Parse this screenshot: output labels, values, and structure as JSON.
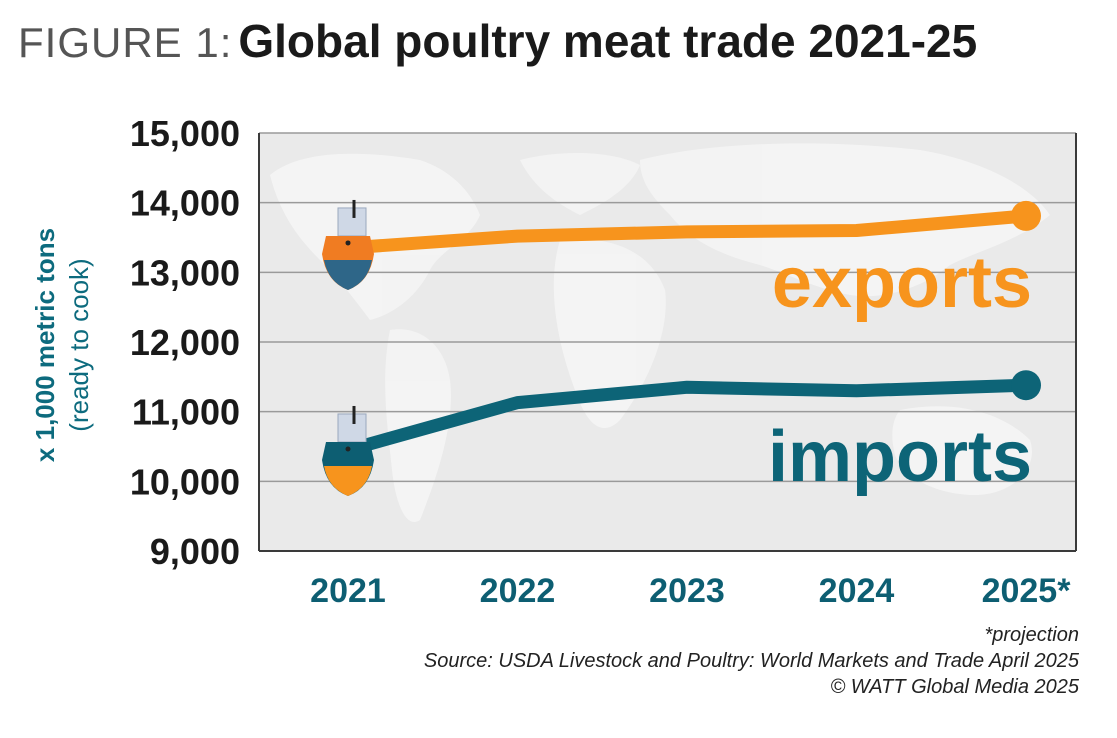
{
  "header": {
    "prefix": "FIGURE 1:",
    "title": "Global poultry meat trade 2021-25"
  },
  "chart_data": {
    "type": "line",
    "title": "Global poultry meat trade 2021-25",
    "x": [
      "2021",
      "2022",
      "2023",
      "2024",
      "2025*"
    ],
    "ylabel": "x 1,000 metric tons",
    "ylabel_sub": "(ready to cook)",
    "ylim": [
      9000,
      15000
    ],
    "yticks": [
      9000,
      10000,
      11000,
      12000,
      13000,
      14000,
      15000
    ],
    "ytick_labels": [
      "9,000",
      "10,000",
      "11,000",
      "12,000",
      "13,000",
      "14,000",
      "15,000"
    ],
    "grid": true,
    "legend": "inline labels at right",
    "series": [
      {
        "name": "exports",
        "values": [
          13350,
          13520,
          13580,
          13600,
          13810
        ],
        "color": "#f7941d"
      },
      {
        "name": "imports",
        "values": [
          10450,
          11130,
          11350,
          11300,
          11380
        ],
        "color": "#0d6477"
      }
    ]
  },
  "footer": {
    "note": "*projection",
    "source": "Source: USDA Livestock and Poultry: World Markets and Trade April 2025",
    "copyright": "© WATT Global Media 2025"
  }
}
